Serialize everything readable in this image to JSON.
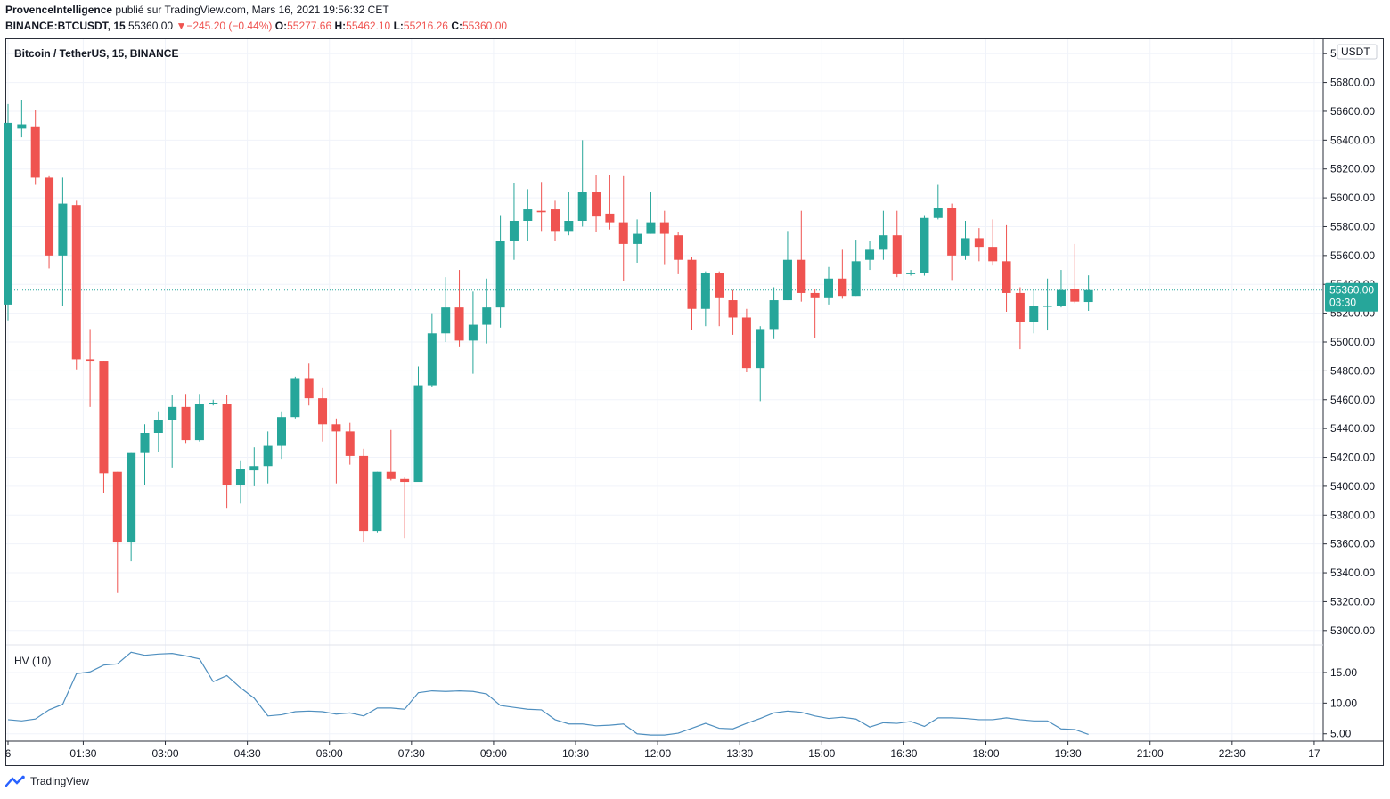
{
  "header": {
    "author": "ProvenceIntelligence",
    "published_text": "publié sur TradingView.com, Mars 16, 2021 19:56:32 CET",
    "symbol": "BINANCE:BTCUSDT, 15",
    "last": "55360.00",
    "change": "−245.20 (−0.44%)",
    "o_label": "O:",
    "o_value": "55277.66",
    "h_label": "H:",
    "h_value": "55462.10",
    "l_label": "L:",
    "l_value": "55216.26",
    "c_label": "C:",
    "c_value": "55360.00"
  },
  "colors": {
    "up": "#26a69a",
    "down": "#ef5350",
    "hv_line": "#4f8fbf",
    "last_price_bg": "#26a69a",
    "grid": "#f0f3fa"
  },
  "footer": {
    "brand": "TradingView",
    "icon": "tradingview-logo-icon"
  },
  "chart_data": [
    {
      "type": "candlestick",
      "title": "Bitcoin / TetherUS, 15, BINANCE",
      "currency": "USDT",
      "ylim": [
        52900,
        57100
      ],
      "y_ticks": [
        "53000.00",
        "53200.00",
        "53400.00",
        "53600.00",
        "53800.00",
        "54000.00",
        "54200.00",
        "54400.00",
        "54600.00",
        "54800.00",
        "55000.00",
        "55200.00",
        "55400.00",
        "55600.00",
        "55800.00",
        "56000.00",
        "56200.00",
        "56400.00",
        "56600.00",
        "56800.00",
        "57000.00"
      ],
      "x_ticks": [
        "6",
        "01:30",
        "03:00",
        "04:30",
        "06:00",
        "07:30",
        "09:00",
        "10:30",
        "12:00",
        "13:30",
        "15:00",
        "16:30",
        "18:00",
        "19:30",
        "21:00",
        "22:30",
        "17"
      ],
      "last_price": "55360.00",
      "countdown": "03:30",
      "candles": [
        {
          "o": 55260,
          "h": 56650,
          "l": 55150,
          "c": 56520
        },
        {
          "o": 56480,
          "h": 56680,
          "l": 56420,
          "c": 56510
        },
        {
          "o": 56490,
          "h": 56610,
          "l": 56090,
          "c": 56140
        },
        {
          "o": 56140,
          "h": 56150,
          "l": 55510,
          "c": 55600
        },
        {
          "o": 55600,
          "h": 56140,
          "l": 55250,
          "c": 55960
        },
        {
          "o": 55950,
          "h": 55980,
          "l": 54810,
          "c": 54880
        },
        {
          "o": 54880,
          "h": 55090,
          "l": 54550,
          "c": 54870
        },
        {
          "o": 54870,
          "h": 54870,
          "l": 53950,
          "c": 54090
        },
        {
          "o": 54100,
          "h": 54100,
          "l": 53260,
          "c": 53610
        },
        {
          "o": 53610,
          "h": 54230,
          "l": 53480,
          "c": 54230
        },
        {
          "o": 54230,
          "h": 54430,
          "l": 54010,
          "c": 54370
        },
        {
          "o": 54370,
          "h": 54520,
          "l": 54240,
          "c": 54460
        },
        {
          "o": 54460,
          "h": 54630,
          "l": 54130,
          "c": 54550
        },
        {
          "o": 54550,
          "h": 54640,
          "l": 54300,
          "c": 54320
        },
        {
          "o": 54320,
          "h": 54640,
          "l": 54310,
          "c": 54570
        },
        {
          "o": 54580,
          "h": 54600,
          "l": 54560,
          "c": 54580
        },
        {
          "o": 54570,
          "h": 54630,
          "l": 53850,
          "c": 54010
        },
        {
          "o": 54010,
          "h": 54180,
          "l": 53880,
          "c": 54120
        },
        {
          "o": 54110,
          "h": 54270,
          "l": 54000,
          "c": 54140
        },
        {
          "o": 54140,
          "h": 54380,
          "l": 54020,
          "c": 54280
        },
        {
          "o": 54280,
          "h": 54520,
          "l": 54190,
          "c": 54480
        },
        {
          "o": 54480,
          "h": 54760,
          "l": 54470,
          "c": 54750
        },
        {
          "o": 54750,
          "h": 54850,
          "l": 54560,
          "c": 54610
        },
        {
          "o": 54610,
          "h": 54680,
          "l": 54310,
          "c": 54430
        },
        {
          "o": 54430,
          "h": 54470,
          "l": 54020,
          "c": 54380
        },
        {
          "o": 54380,
          "h": 54440,
          "l": 54150,
          "c": 54210
        },
        {
          "o": 54210,
          "h": 54260,
          "l": 53610,
          "c": 53690
        },
        {
          "o": 53690,
          "h": 54100,
          "l": 53680,
          "c": 54100
        },
        {
          "o": 54100,
          "h": 54390,
          "l": 54040,
          "c": 54050
        },
        {
          "o": 54050,
          "h": 54060,
          "l": 53640,
          "c": 54030
        },
        {
          "o": 54030,
          "h": 54830,
          "l": 54030,
          "c": 54700
        },
        {
          "o": 54700,
          "h": 55200,
          "l": 54690,
          "c": 55060
        },
        {
          "o": 55060,
          "h": 55450,
          "l": 55000,
          "c": 55240
        },
        {
          "o": 55240,
          "h": 55500,
          "l": 54970,
          "c": 55010
        },
        {
          "o": 55010,
          "h": 55350,
          "l": 54780,
          "c": 55120
        },
        {
          "o": 55120,
          "h": 55440,
          "l": 54990,
          "c": 55240
        },
        {
          "o": 55240,
          "h": 55880,
          "l": 55100,
          "c": 55700
        },
        {
          "o": 55700,
          "h": 56100,
          "l": 55570,
          "c": 55840
        },
        {
          "o": 55840,
          "h": 56060,
          "l": 55700,
          "c": 55920
        },
        {
          "o": 55910,
          "h": 56110,
          "l": 55770,
          "c": 55900
        },
        {
          "o": 55920,
          "h": 55980,
          "l": 55700,
          "c": 55770
        },
        {
          "o": 55770,
          "h": 56040,
          "l": 55740,
          "c": 55840
        },
        {
          "o": 55840,
          "h": 56400,
          "l": 55800,
          "c": 56040
        },
        {
          "o": 56040,
          "h": 56160,
          "l": 55760,
          "c": 55870
        },
        {
          "o": 55890,
          "h": 56160,
          "l": 55780,
          "c": 55830
        },
        {
          "o": 55830,
          "h": 56150,
          "l": 55420,
          "c": 55680
        },
        {
          "o": 55680,
          "h": 55850,
          "l": 55550,
          "c": 55750
        },
        {
          "o": 55750,
          "h": 56040,
          "l": 55750,
          "c": 55830
        },
        {
          "o": 55830,
          "h": 55910,
          "l": 55540,
          "c": 55750
        },
        {
          "o": 55740,
          "h": 55760,
          "l": 55470,
          "c": 55570
        },
        {
          "o": 55570,
          "h": 55590,
          "l": 55080,
          "c": 55230
        },
        {
          "o": 55230,
          "h": 55490,
          "l": 55110,
          "c": 55480
        },
        {
          "o": 55480,
          "h": 55490,
          "l": 55110,
          "c": 55310
        },
        {
          "o": 55290,
          "h": 55360,
          "l": 55050,
          "c": 55170
        },
        {
          "o": 55170,
          "h": 55230,
          "l": 54790,
          "c": 54820
        },
        {
          "o": 54820,
          "h": 55110,
          "l": 54590,
          "c": 55090
        },
        {
          "o": 55090,
          "h": 55380,
          "l": 55020,
          "c": 55290
        },
        {
          "o": 55290,
          "h": 55770,
          "l": 55290,
          "c": 55570
        },
        {
          "o": 55570,
          "h": 55910,
          "l": 55280,
          "c": 55340
        },
        {
          "o": 55340,
          "h": 55370,
          "l": 55030,
          "c": 55310
        },
        {
          "o": 55310,
          "h": 55520,
          "l": 55260,
          "c": 55440
        },
        {
          "o": 55440,
          "h": 55640,
          "l": 55300,
          "c": 55320
        },
        {
          "o": 55320,
          "h": 55710,
          "l": 55320,
          "c": 55560
        },
        {
          "o": 55570,
          "h": 55700,
          "l": 55500,
          "c": 55640
        },
        {
          "o": 55640,
          "h": 55910,
          "l": 55570,
          "c": 55740
        },
        {
          "o": 55740,
          "h": 55910,
          "l": 55450,
          "c": 55470
        },
        {
          "o": 55470,
          "h": 55500,
          "l": 55460,
          "c": 55480
        },
        {
          "o": 55480,
          "h": 55880,
          "l": 55460,
          "c": 55860
        },
        {
          "o": 55860,
          "h": 56090,
          "l": 55850,
          "c": 55930
        },
        {
          "o": 55930,
          "h": 55960,
          "l": 55430,
          "c": 55600
        },
        {
          "o": 55600,
          "h": 55840,
          "l": 55570,
          "c": 55720
        },
        {
          "o": 55720,
          "h": 55790,
          "l": 55560,
          "c": 55660
        },
        {
          "o": 55660,
          "h": 55850,
          "l": 55530,
          "c": 55560
        },
        {
          "o": 55560,
          "h": 55810,
          "l": 55210,
          "c": 55340
        },
        {
          "o": 55340,
          "h": 55380,
          "l": 54950,
          "c": 55140
        },
        {
          "o": 55140,
          "h": 55360,
          "l": 55060,
          "c": 55250
        },
        {
          "o": 55250,
          "h": 55440,
          "l": 55080,
          "c": 55250
        },
        {
          "o": 55250,
          "h": 55500,
          "l": 55240,
          "c": 55360
        },
        {
          "o": 55370,
          "h": 55680,
          "l": 55270,
          "c": 55280
        },
        {
          "o": 55277.66,
          "h": 55462.1,
          "l": 55216.26,
          "c": 55360
        }
      ]
    },
    {
      "type": "line",
      "title": "HV (10)",
      "ylim": [
        3.8,
        19.5
      ],
      "y_ticks": [
        "5.00",
        "10.00",
        "15.00"
      ],
      "values": [
        7.3,
        7.1,
        7.4,
        8.9,
        9.8,
        14.8,
        15.1,
        16.2,
        16.4,
        18.3,
        17.8,
        18.0,
        18.1,
        17.7,
        17.2,
        13.5,
        14.5,
        12.5,
        10.8,
        7.9,
        8.1,
        8.6,
        8.7,
        8.6,
        8.2,
        8.4,
        7.9,
        9.2,
        9.2,
        9.0,
        11.7,
        12.0,
        11.9,
        12.0,
        11.9,
        11.5,
        9.6,
        9.3,
        9.0,
        8.9,
        7.3,
        6.6,
        6.6,
        6.3,
        6.4,
        6.6,
        5.0,
        4.8,
        4.8,
        5.1,
        5.9,
        6.7,
        5.9,
        5.8,
        6.7,
        7.5,
        8.4,
        8.7,
        8.5,
        7.9,
        7.5,
        7.7,
        7.4,
        6.1,
        6.8,
        6.7,
        7.0,
        6.2,
        7.6,
        7.6,
        7.5,
        7.3,
        7.3,
        7.6,
        7.3,
        7.1,
        7.1,
        5.8,
        5.7,
        4.9
      ]
    }
  ]
}
